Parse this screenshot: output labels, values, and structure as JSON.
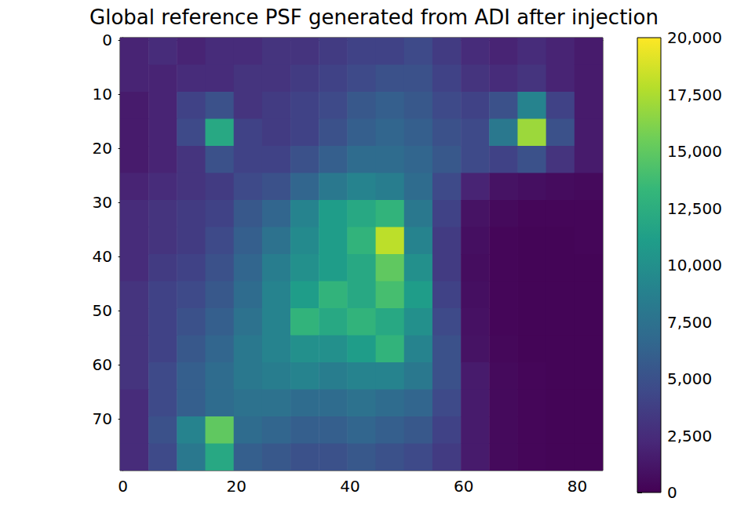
{
  "chart_data": {
    "type": "heatmap",
    "title": "Global reference PSF generated from ADI after injection",
    "x_bins": [
      -0.5,
      4.5,
      9.5,
      14.5,
      19.5,
      24.5,
      29.5,
      34.5,
      39.5,
      44.5,
      49.5,
      54.5,
      59.5,
      64.5,
      69.5,
      74.5,
      79.5,
      84.5
    ],
    "y_bins": [
      -0.5,
      4.5,
      9.5,
      14.5,
      19.5,
      24.5,
      29.5,
      34.5,
      39.5,
      44.5,
      49.5,
      54.5,
      59.5,
      64.5,
      69.5,
      74.5,
      79.5
    ],
    "cells": [
      [
        2000,
        2500,
        2000,
        2500,
        2500,
        3000,
        3000,
        3500,
        4000,
        4000,
        4500,
        3500,
        2500,
        2000,
        2500,
        2000,
        1500
      ],
      [
        2000,
        2000,
        2500,
        2500,
        3000,
        3000,
        3500,
        4000,
        4500,
        5000,
        5000,
        4000,
        3000,
        2500,
        3000,
        2000,
        1500
      ],
      [
        1500,
        2000,
        4000,
        5000,
        3000,
        3500,
        4000,
        4500,
        5500,
        6000,
        5500,
        4500,
        4000,
        5000,
        9000,
        4000,
        1500
      ],
      [
        1500,
        2000,
        4500,
        12000,
        4000,
        3500,
        4000,
        5000,
        6000,
        6500,
        6000,
        5000,
        4500,
        8000,
        17000,
        5000,
        1500
      ],
      [
        1500,
        2000,
        3000,
        5000,
        4000,
        4000,
        5000,
        6000,
        7000,
        7000,
        6500,
        5500,
        4500,
        4000,
        5000,
        3000,
        1500
      ],
      [
        2000,
        2500,
        3000,
        3500,
        4500,
        5000,
        6500,
        8000,
        9000,
        8500,
        7000,
        4500,
        2000,
        1000,
        800,
        600,
        500
      ],
      [
        2500,
        3000,
        3500,
        4000,
        5500,
        6500,
        9000,
        11000,
        12000,
        13000,
        8000,
        4000,
        1000,
        500,
        300,
        300,
        300
      ],
      [
        2500,
        3000,
        3500,
        4500,
        6000,
        7500,
        9500,
        11000,
        13000,
        18000,
        9000,
        3500,
        800,
        300,
        200,
        200,
        300
      ],
      [
        2500,
        3500,
        4000,
        5000,
        6500,
        8500,
        10000,
        11000,
        12000,
        15000,
        10000,
        3500,
        700,
        300,
        200,
        200,
        200
      ],
      [
        3000,
        4000,
        4500,
        5500,
        7000,
        9000,
        11000,
        13000,
        12000,
        14000,
        11000,
        4000,
        800,
        300,
        200,
        200,
        200
      ],
      [
        3000,
        4000,
        5000,
        6000,
        7500,
        9000,
        13000,
        12000,
        13000,
        12000,
        10000,
        4500,
        900,
        300,
        200,
        200,
        200
      ],
      [
        3000,
        4000,
        5500,
        6500,
        8000,
        9000,
        10000,
        10000,
        11000,
        13000,
        9000,
        5000,
        1000,
        400,
        200,
        200,
        200
      ],
      [
        3000,
        4500,
        6000,
        7000,
        8000,
        8500,
        9000,
        8500,
        9000,
        9000,
        8000,
        5000,
        1500,
        500,
        300,
        200,
        200
      ],
      [
        2500,
        4500,
        6000,
        7000,
        7500,
        7500,
        7000,
        7000,
        7500,
        7000,
        6500,
        4500,
        1500,
        500,
        300,
        200,
        200
      ],
      [
        2500,
        5000,
        9000,
        15000,
        7000,
        6500,
        6000,
        6000,
        6500,
        6000,
        5500,
        4000,
        1500,
        500,
        300,
        200,
        200
      ],
      [
        2500,
        4500,
        8000,
        12000,
        6000,
        5500,
        5000,
        5000,
        5500,
        5000,
        4500,
        3500,
        1500,
        500,
        300,
        200,
        200
      ]
    ],
    "xlim": [
      -0.5,
      84.5
    ],
    "ylim": [
      79.5,
      -0.5
    ],
    "xticks": [
      0,
      20,
      40,
      60,
      80
    ],
    "yticks": [
      0,
      10,
      20,
      30,
      40,
      50,
      60,
      70
    ],
    "colorbar": {
      "range": [
        0,
        20000
      ],
      "ticks": [
        0,
        2500,
        5000,
        7500,
        10000,
        12500,
        15000,
        17500,
        20000
      ]
    }
  }
}
